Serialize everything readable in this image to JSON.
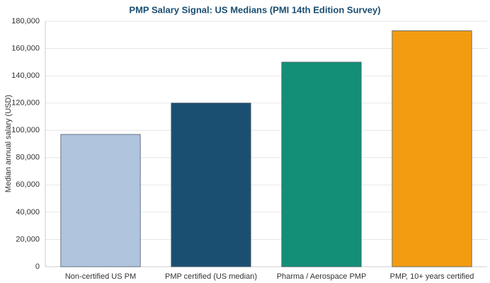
{
  "chart_data": {
    "type": "bar",
    "title": "PMP Salary Signal: US Medians (PMI 14th Edition Survey)",
    "y_label": "Median annual salary (USD)",
    "categories": [
      "Non-certified US PM",
      "PMP certified (US median)",
      "Pharma / Aerospace PMP",
      "PMP, 10+ years certified"
    ],
    "values": [
      97000,
      120000,
      150000,
      173000
    ],
    "colors": [
      "#b0c4de",
      "#1b4f72",
      "#148f77",
      "#f39c12"
    ],
    "ylim": [
      0,
      180000
    ],
    "yticks": [
      0,
      {
        "value": 20000,
        "label": "20,000"
      },
      {
        "value": 40000,
        "label": "40,000"
      },
      {
        "value": 60000,
        "label": "60,000"
      },
      {
        "value": 80000,
        "label": "80,000"
      },
      {
        "value": 100000,
        "label": "100,000"
      },
      {
        "value": 120000,
        "label": "120,000"
      },
      {
        "value": 140000,
        "label": "140,000"
      },
      {
        "value": 160000,
        "label": "160,000"
      },
      {
        "value": 180000,
        "label": "180,000"
      }
    ],
    "grid": true
  }
}
